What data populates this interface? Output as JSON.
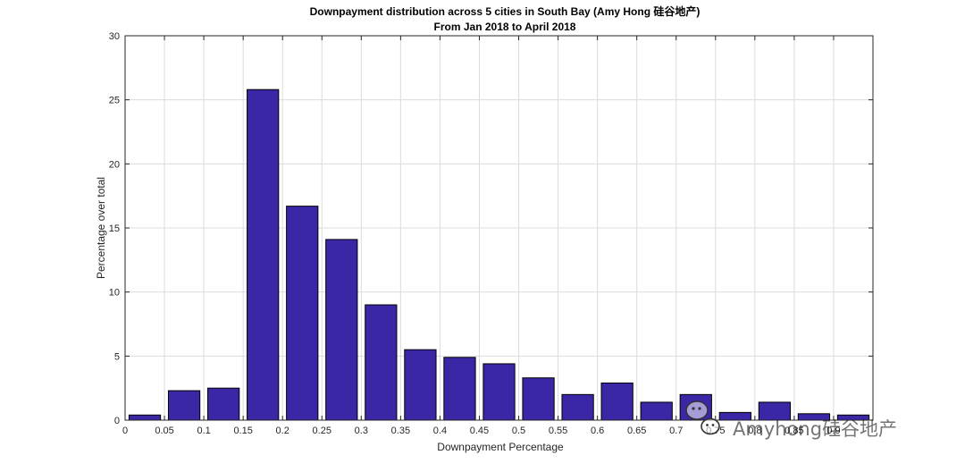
{
  "chart_data": {
    "type": "bar",
    "title": "Downpayment distribution across 5 cities in South Bay (Amy Hong 硅谷地产)",
    "subtitle": "From Jan 2018  to April 2018",
    "xlabel": "Downpayment Percentage",
    "ylabel": "Percentage over total",
    "xlim": [
      0,
      0.95
    ],
    "ylim": [
      0,
      30
    ],
    "grid": true,
    "x_ticks": [
      "0",
      "0.05",
      "0.1",
      "0.15",
      "0.2",
      "0.25",
      "0.3",
      "0.35",
      "0.4",
      "0.45",
      "0.5",
      "0.55",
      "0.6",
      "0.65",
      "0.7",
      "0.75",
      "0.8",
      "0.85",
      "0.9"
    ],
    "y_ticks": [
      "0",
      "5",
      "10",
      "15",
      "20",
      "25",
      "30"
    ],
    "bar_color": "#3A27A6",
    "bar_width": 0.04,
    "x": [
      0.025,
      0.075,
      0.125,
      0.175,
      0.225,
      0.275,
      0.325,
      0.375,
      0.425,
      0.475,
      0.525,
      0.575,
      0.625,
      0.675,
      0.725,
      0.775,
      0.825,
      0.875,
      0.925
    ],
    "values": [
      0.4,
      2.3,
      2.5,
      25.8,
      16.7,
      14.1,
      9.0,
      5.5,
      4.9,
      4.4,
      3.3,
      2.0,
      2.9,
      1.4,
      2.0,
      0.6,
      1.4,
      0.5,
      0.4
    ]
  },
  "watermark": {
    "text": "Amyhong硅谷地产",
    "icon": "wechat-icon"
  }
}
